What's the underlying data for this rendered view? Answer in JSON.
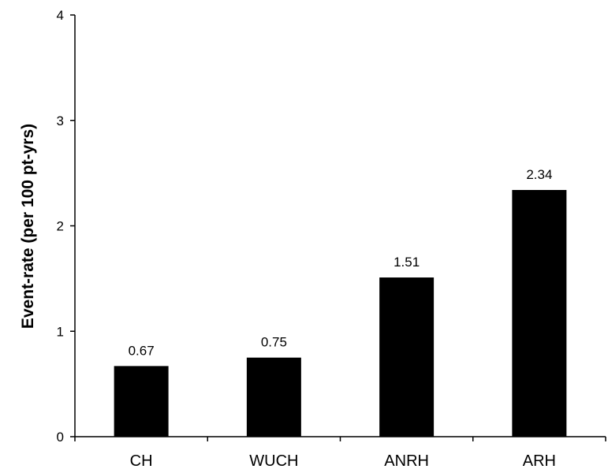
{
  "chart_data": {
    "type": "bar",
    "title": "",
    "xlabel": "",
    "ylabel": "Event-rate (per 100 pt-yrs)",
    "categories": [
      "CH",
      "WUCH",
      "ANRH",
      "ARH"
    ],
    "values": [
      0.67,
      0.75,
      1.51,
      2.34
    ],
    "data_labels": [
      "0.67",
      "0.75",
      "1.51",
      "2.34"
    ],
    "ylim": [
      0,
      4
    ],
    "yticks": [
      0,
      1,
      2,
      3,
      4
    ],
    "ytick_labels": [
      "0",
      "1",
      "2",
      "3",
      "4"
    ],
    "bar_color": "#000000",
    "grid": false,
    "legend": "none"
  }
}
